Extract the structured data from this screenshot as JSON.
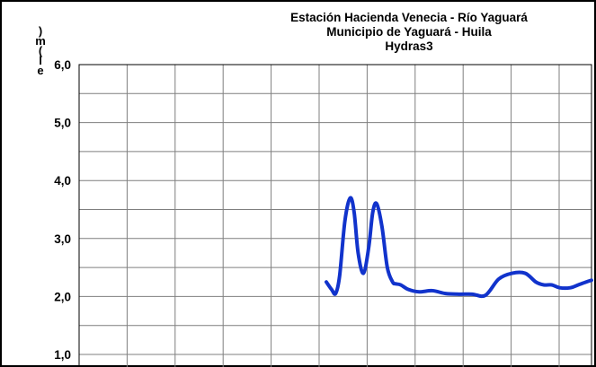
{
  "chart_data": {
    "type": "line",
    "title_lines": [
      "Estación Hacienda  Venecia - Río  Yaguará",
      "Municipio de Yaguará - Huila",
      "Hydras3"
    ],
    "ylabel": "Nivel (m)",
    "ylim": [
      1.0,
      6.0
    ],
    "yticks": [
      "1,0",
      "2,0",
      "3,0",
      "4,0",
      "5,0",
      "6,0"
    ],
    "grid": true,
    "line_color": "#1133cc",
    "x": [
      0.0,
      0.02,
      0.035,
      0.05,
      0.07,
      0.09,
      0.105,
      0.12,
      0.14,
      0.16,
      0.175,
      0.19,
      0.21,
      0.23,
      0.25,
      0.26,
      0.28,
      0.31,
      0.35,
      0.4,
      0.45,
      0.5,
      0.55,
      0.6,
      0.65,
      0.7,
      0.75,
      0.79,
      0.82,
      0.85,
      0.88,
      0.92,
      0.95,
      0.98,
      1.0
    ],
    "values": [
      2.25,
      2.12,
      2.05,
      2.35,
      3.3,
      3.7,
      3.45,
      2.75,
      2.4,
      2.85,
      3.45,
      3.6,
      3.2,
      2.5,
      2.25,
      2.22,
      2.2,
      2.12,
      2.08,
      2.1,
      2.05,
      2.04,
      2.04,
      2.02,
      2.3,
      2.4,
      2.4,
      2.25,
      2.2,
      2.2,
      2.15,
      2.15,
      2.2,
      2.25,
      2.28
    ]
  }
}
